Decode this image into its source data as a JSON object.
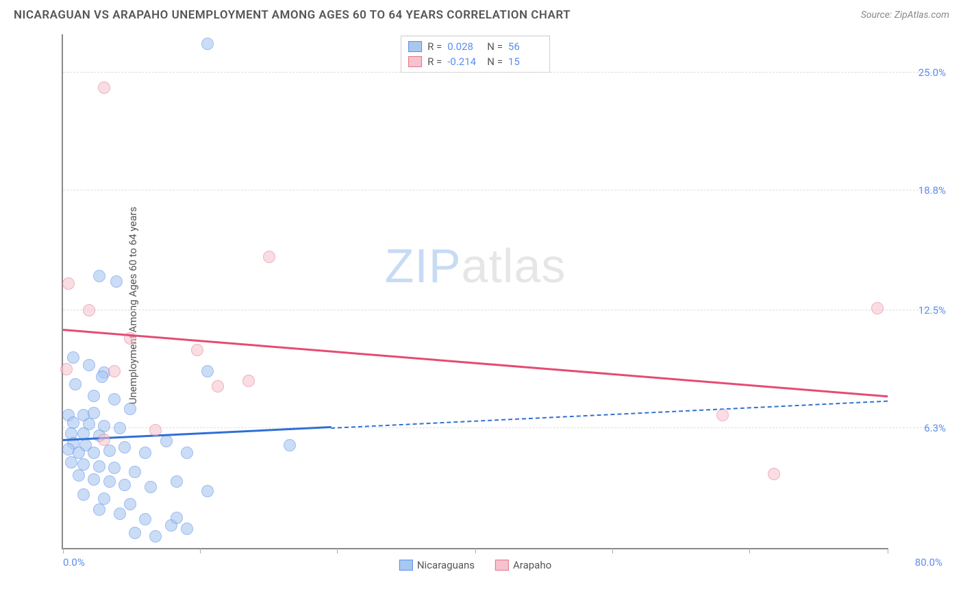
{
  "header": {
    "title": "NICARAGUAN VS ARAPAHO UNEMPLOYMENT AMONG AGES 60 TO 64 YEARS CORRELATION CHART",
    "source": "Source: ZipAtlas.com"
  },
  "watermark": {
    "part1": "ZIP",
    "part2": "atlas"
  },
  "chart": {
    "type": "scatter",
    "y_axis_label": "Unemployment Among Ages 60 to 64 years",
    "background_color": "#ffffff",
    "grid_color": "#dddddd",
    "axis_color": "#888888",
    "tick_label_color": "#5b8def",
    "xlim": [
      0,
      80
    ],
    "ylim": [
      0,
      27
    ],
    "x_min_label": "0.0%",
    "x_max_label": "80.0%",
    "x_tick_positions": [
      0,
      13.3,
      26.6,
      40,
      53.3,
      66.6,
      80
    ],
    "y_gridlines": [
      {
        "value": 6.3,
        "label": "6.3%"
      },
      {
        "value": 12.5,
        "label": "12.5%"
      },
      {
        "value": 18.8,
        "label": "18.8%"
      },
      {
        "value": 25.0,
        "label": "25.0%"
      }
    ],
    "series": [
      {
        "name": "Nicaraguans",
        "fill_color": "#a8c8ef",
        "stroke_color": "#5b8def",
        "fill_opacity": 0.6,
        "marker_radius": 9,
        "trend_color": "#2f6fd6",
        "trend_start": {
          "x": 0,
          "y": 5.6
        },
        "trend_solid_end_x": 26,
        "trend_end": {
          "x": 80,
          "y": 7.7
        },
        "points": [
          {
            "x": 14,
            "y": 26.5
          },
          {
            "x": 3.5,
            "y": 14.3
          },
          {
            "x": 5.2,
            "y": 14.0
          },
          {
            "x": 1,
            "y": 10.0
          },
          {
            "x": 2.5,
            "y": 9.6
          },
          {
            "x": 4,
            "y": 9.2
          },
          {
            "x": 1.2,
            "y": 8.6
          },
          {
            "x": 3.8,
            "y": 9.0
          },
          {
            "x": 14,
            "y": 9.3
          },
          {
            "x": 3,
            "y": 8.0
          },
          {
            "x": 5,
            "y": 7.8
          },
          {
            "x": 6.5,
            "y": 7.3
          },
          {
            "x": 0.5,
            "y": 7.0
          },
          {
            "x": 2,
            "y": 7.0
          },
          {
            "x": 3,
            "y": 7.1
          },
          {
            "x": 1,
            "y": 6.6
          },
          {
            "x": 2.5,
            "y": 6.5
          },
          {
            "x": 4,
            "y": 6.4
          },
          {
            "x": 5.5,
            "y": 6.3
          },
          {
            "x": 0.8,
            "y": 6.0
          },
          {
            "x": 2,
            "y": 6.0
          },
          {
            "x": 3.5,
            "y": 5.9
          },
          {
            "x": 1,
            "y": 5.5
          },
          {
            "x": 2.2,
            "y": 5.4
          },
          {
            "x": 0.5,
            "y": 5.2
          },
          {
            "x": 1.5,
            "y": 5.0
          },
          {
            "x": 3,
            "y": 5.0
          },
          {
            "x": 4.5,
            "y": 5.1
          },
          {
            "x": 6,
            "y": 5.3
          },
          {
            "x": 8,
            "y": 5.0
          },
          {
            "x": 10,
            "y": 5.6
          },
          {
            "x": 12,
            "y": 5.0
          },
          {
            "x": 22,
            "y": 5.4
          },
          {
            "x": 0.8,
            "y": 4.5
          },
          {
            "x": 2,
            "y": 4.4
          },
          {
            "x": 3.5,
            "y": 4.3
          },
          {
            "x": 5,
            "y": 4.2
          },
          {
            "x": 7,
            "y": 4.0
          },
          {
            "x": 1.5,
            "y": 3.8
          },
          {
            "x": 3,
            "y": 3.6
          },
          {
            "x": 4.5,
            "y": 3.5
          },
          {
            "x": 6,
            "y": 3.3
          },
          {
            "x": 8.5,
            "y": 3.2
          },
          {
            "x": 11,
            "y": 3.5
          },
          {
            "x": 14,
            "y": 3.0
          },
          {
            "x": 2,
            "y": 2.8
          },
          {
            "x": 4,
            "y": 2.6
          },
          {
            "x": 6.5,
            "y": 2.3
          },
          {
            "x": 3.5,
            "y": 2.0
          },
          {
            "x": 5.5,
            "y": 1.8
          },
          {
            "x": 8,
            "y": 1.5
          },
          {
            "x": 10.5,
            "y": 1.2
          },
          {
            "x": 12,
            "y": 1.0
          },
          {
            "x": 7,
            "y": 0.8
          },
          {
            "x": 9,
            "y": 0.6
          },
          {
            "x": 11,
            "y": 1.6
          }
        ]
      },
      {
        "name": "Arapaho",
        "fill_color": "#f5c3cd",
        "stroke_color": "#e76f8c",
        "fill_opacity": 0.55,
        "marker_radius": 9,
        "trend_color": "#e54b73",
        "trend_start": {
          "x": 0,
          "y": 11.4
        },
        "trend_solid_end_x": 80,
        "trend_end": {
          "x": 80,
          "y": 7.9
        },
        "points": [
          {
            "x": 4,
            "y": 24.2
          },
          {
            "x": 20,
            "y": 15.3
          },
          {
            "x": 0.5,
            "y": 13.9
          },
          {
            "x": 2.5,
            "y": 12.5
          },
          {
            "x": 79,
            "y": 12.6
          },
          {
            "x": 6.5,
            "y": 11.0
          },
          {
            "x": 13,
            "y": 10.4
          },
          {
            "x": 0.3,
            "y": 9.4
          },
          {
            "x": 5,
            "y": 9.3
          },
          {
            "x": 15,
            "y": 8.5
          },
          {
            "x": 18,
            "y": 8.8
          },
          {
            "x": 64,
            "y": 7.0
          },
          {
            "x": 9,
            "y": 6.2
          },
          {
            "x": 4,
            "y": 5.7
          },
          {
            "x": 69,
            "y": 3.9
          }
        ]
      }
    ],
    "legend_top": [
      {
        "series_index": 0,
        "r_label": "R =",
        "r_value": "0.028",
        "n_label": "N =",
        "n_value": "56"
      },
      {
        "series_index": 1,
        "r_label": "R =",
        "r_value": "-0.214",
        "n_label": "N =",
        "n_value": "15"
      }
    ],
    "legend_bottom": [
      {
        "series_index": 0,
        "label": "Nicaraguans"
      },
      {
        "series_index": 1,
        "label": "Arapaho"
      }
    ]
  }
}
